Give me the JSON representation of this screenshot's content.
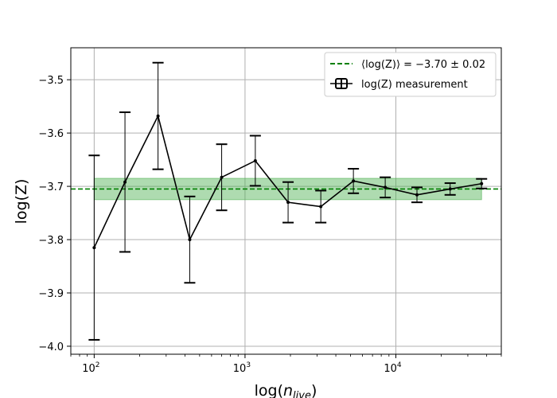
{
  "chart_data": {
    "type": "line",
    "title": "",
    "xlabel": "log(n_live)",
    "ylabel": "log(Z)",
    "xscale": "log",
    "xlim": [
      70,
      50000
    ],
    "ylim": [
      -4.015,
      -3.44
    ],
    "grid": true,
    "x_ticks": [
      100,
      1000,
      10000
    ],
    "x_tick_labels": [
      {
        "base": "10",
        "exp": "2"
      },
      {
        "base": "10",
        "exp": "3"
      },
      {
        "base": "10",
        "exp": "4"
      }
    ],
    "y_ticks": [
      -4.0,
      -3.9,
      -3.8,
      -3.7,
      -3.6,
      -3.5
    ],
    "y_tick_labels": [
      "−4.0",
      "−3.9",
      "−3.8",
      "−3.7",
      "−3.6",
      "−3.5"
    ],
    "legend_position": "top-right",
    "mean": {
      "value": -3.705,
      "error": 0.02,
      "band_x_range": [
        100,
        37000
      ],
      "label": "⟨log(Z)⟩ = −3.70 ± 0.02",
      "color": "#008000",
      "band_color": "#4caf50"
    },
    "series": [
      {
        "name": "log(Z) measurement",
        "color": "#000000",
        "x": [
          100,
          160,
          265,
          430,
          700,
          1170,
          1930,
          3180,
          5230,
          8500,
          13800,
          22900,
          37000
        ],
        "y": [
          -3.815,
          -3.692,
          -3.568,
          -3.8,
          -3.683,
          -3.652,
          -3.73,
          -3.738,
          -3.69,
          -3.702,
          -3.716,
          -3.705,
          -3.695
        ],
        "yerr": [
          0.173,
          0.131,
          0.1,
          0.081,
          0.062,
          0.047,
          0.038,
          0.03,
          0.023,
          0.019,
          0.014,
          0.011,
          0.009
        ]
      }
    ]
  }
}
